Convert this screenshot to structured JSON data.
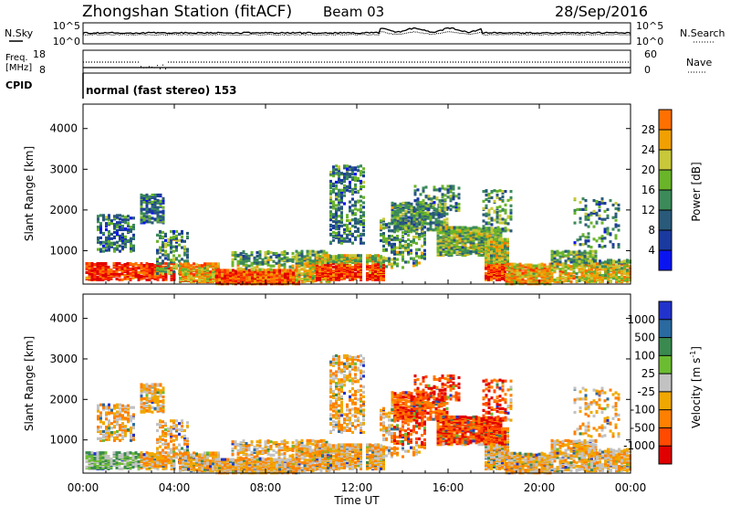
{
  "header": {
    "station": "Zhongshan Station (fitACF)",
    "beam": "Beam 03",
    "date": "28/Sep/2016"
  },
  "summary": {
    "nsky_label": "N.Sky",
    "nsearch_label": "N.Search",
    "scale_top": "10^5",
    "scale_bottom": "10^0",
    "freq_label_1": "Freq.",
    "freq_label_2": "[MHz]",
    "freq_top": "18",
    "freq_bottom": "8",
    "nave_top": "60",
    "nave_bottom": "0",
    "nave_label": "Nave",
    "cpid_label": "CPID",
    "cpid_text": "normal (fast stereo) 153"
  },
  "colors": {
    "power": [
      "#0a14f0",
      "#1a3aa0",
      "#2a5a7a",
      "#3c8a5a",
      "#6ab42a",
      "#c8c83a",
      "#f0a000",
      "#ff7000",
      "#ff3000",
      "#e00000"
    ],
    "velocity": [
      "#2233cc",
      "#2a6aa0",
      "#3a8a50",
      "#6cbc32",
      "#c2c2c2",
      "#f0a800",
      "#ff8000",
      "#ff4a00",
      "#e00000"
    ]
  },
  "chart_data": [
    {
      "type": "heatmap",
      "name": "power",
      "ylabel": "Slant Range [km]",
      "xlim_hours": [
        0,
        24
      ],
      "ylim_km": [
        180,
        4600
      ],
      "yticks": [
        1000,
        2000,
        3000,
        4000
      ],
      "colorbar": {
        "label": "Power [dB]",
        "ticks": [
          "4",
          "8",
          "12",
          "16",
          "20",
          "24",
          "28"
        ],
        "range": [
          0,
          30
        ]
      }
    },
    {
      "type": "heatmap",
      "name": "velocity",
      "ylabel": "Slant Range [km]",
      "xlabel": "Time UT",
      "xlim_hours": [
        0,
        24
      ],
      "ylim_km": [
        180,
        4600
      ],
      "xticks": [
        "00:00",
        "04:00",
        "08:00",
        "12:00",
        "16:00",
        "20:00",
        "00:00"
      ],
      "yticks": [
        1000,
        2000,
        3000,
        4000
      ],
      "colorbar": {
        "label": "Velocity [m s",
        "label_sup": "-1",
        "ticks": [
          "1000",
          "500",
          "100",
          "25",
          "-25",
          "-100",
          "-500",
          "-1000"
        ]
      }
    }
  ]
}
